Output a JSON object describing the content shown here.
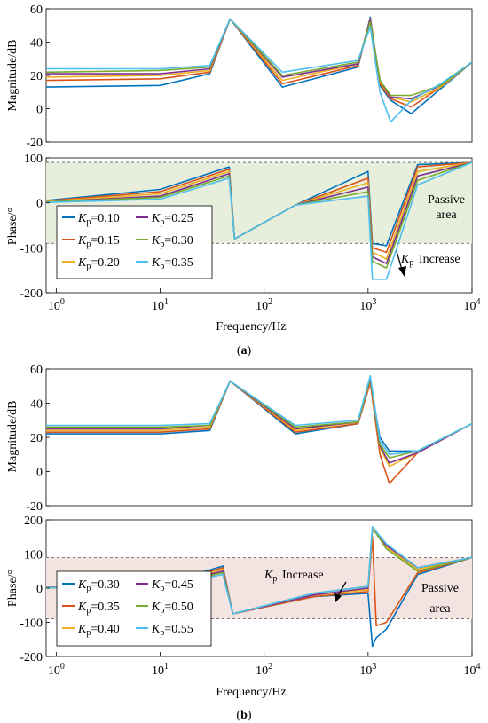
{
  "figure_a": {
    "caption_letter": "a",
    "magnitude": {
      "ylabel": "Magnitude/dB",
      "ylim": [
        -20,
        60
      ],
      "yticks": [
        "-20",
        "0",
        "20",
        "40",
        "60"
      ]
    },
    "phase": {
      "ylabel": "Phase/°",
      "ylim": [
        -200,
        100
      ],
      "yticks": [
        "-200",
        "-100",
        "0",
        "100"
      ],
      "passive_band": [
        -90,
        90
      ],
      "passive_label_1": "Passive",
      "passive_label_2": "area",
      "annotation": "Increase"
    },
    "xlabel": "Frequency/Hz",
    "legend": [
      "=0.10",
      "=0.25",
      "=0.15",
      "=0.30",
      "=0.20",
      "=0.35"
    ]
  },
  "figure_b": {
    "caption_letter": "b",
    "magnitude": {
      "ylabel": "Magnitude/dB",
      "ylim": [
        -20,
        60
      ],
      "yticks": [
        "-20",
        "0",
        "20",
        "40",
        "60"
      ]
    },
    "phase": {
      "ylabel": "Phase/°",
      "ylim": [
        -200,
        200
      ],
      "yticks": [
        "-200",
        "-100",
        "0",
        "100",
        "200"
      ],
      "passive_band": [
        -90,
        90
      ],
      "passive_label_1": "Passive",
      "passive_label_2": "area",
      "annotation": "Increase"
    },
    "xlabel": "Frequency/Hz",
    "legend": [
      "=0.30",
      "=0.45",
      "=0.35",
      "=0.50",
      "=0.40",
      "=0.55"
    ]
  },
  "colors": {
    "series": [
      "#0072BD",
      "#D95319",
      "#EDB120",
      "#7E2F8E",
      "#77AC30",
      "#4DBEEE"
    ],
    "passive_fill_a": "#e7eedc",
    "passive_fill_b": "#f3e4e1"
  },
  "chart_data": [
    {
      "type": "line",
      "panel": "a-magnitude",
      "xscale": "log",
      "xlim": [
        0.8,
        10000
      ],
      "ylim": [
        -20,
        60
      ],
      "x": [
        0.8,
        10,
        30,
        47,
        150,
        800,
        1050,
        1300,
        1650,
        2600,
        5000,
        10000
      ],
      "series": [
        {
          "name": "Kp=0.10",
          "values": [
            13,
            14,
            21,
            54,
            13,
            25,
            55,
            14,
            5,
            -3,
            12,
            28
          ]
        },
        {
          "name": "Kp=0.15",
          "values": [
            17,
            18,
            22,
            54,
            15,
            26,
            54,
            15,
            6,
            1,
            13,
            28
          ]
        },
        {
          "name": "Kp=0.20",
          "values": [
            19,
            20,
            23,
            54,
            17,
            27,
            53,
            16,
            7,
            4,
            13,
            28
          ]
        },
        {
          "name": "Kp=0.25",
          "values": [
            21,
            21,
            24,
            54,
            19,
            27,
            53,
            17,
            7,
            6,
            14,
            28
          ]
        },
        {
          "name": "Kp=0.30",
          "values": [
            22,
            23,
            25,
            54,
            20,
            28,
            52,
            17,
            8,
            8,
            14,
            28
          ]
        },
        {
          "name": "Kp=0.35",
          "values": [
            24,
            24,
            26,
            54,
            22,
            29,
            49,
            10,
            -8,
            5,
            15,
            28
          ]
        }
      ]
    },
    {
      "type": "line",
      "panel": "a-phase",
      "xscale": "log",
      "xlim": [
        0.8,
        10000
      ],
      "ylim": [
        -200,
        100
      ],
      "x": [
        0.8,
        10,
        46,
        52,
        200,
        1000,
        1100,
        1500,
        3000,
        10000
      ],
      "series": [
        {
          "name": "Kp=0.10",
          "values": [
            5,
            30,
            80,
            -80,
            -5,
            70,
            -90,
            -95,
            85,
            90
          ]
        },
        {
          "name": "Kp=0.15",
          "values": [
            4,
            25,
            75,
            -80,
            -5,
            55,
            -100,
            -110,
            80,
            90
          ]
        },
        {
          "name": "Kp=0.20",
          "values": [
            3,
            20,
            70,
            -80,
            -5,
            45,
            -110,
            -125,
            70,
            90
          ]
        },
        {
          "name": "Kp=0.25",
          "values": [
            2,
            15,
            65,
            -80,
            -5,
            35,
            -120,
            -135,
            60,
            90
          ]
        },
        {
          "name": "Kp=0.30",
          "values": [
            2,
            12,
            60,
            -80,
            -5,
            25,
            -130,
            -145,
            50,
            90
          ]
        },
        {
          "name": "Kp=0.35",
          "values": [
            1,
            8,
            55,
            -80,
            -5,
            15,
            -170,
            -170,
            40,
            90
          ]
        }
      ]
    },
    {
      "type": "line",
      "panel": "b-magnitude",
      "xscale": "log",
      "xlim": [
        0.8,
        10000
      ],
      "ylim": [
        -20,
        60
      ],
      "x": [
        0.8,
        10,
        30,
        47,
        200,
        800,
        1050,
        1300,
        1600,
        3000,
        10000
      ],
      "series": [
        {
          "name": "Kp=0.30",
          "values": [
            22,
            22,
            24,
            53,
            22,
            28,
            52,
            20,
            12,
            12,
            28
          ]
        },
        {
          "name": "Kp=0.35",
          "values": [
            23,
            23,
            25,
            53,
            23,
            28,
            52,
            10,
            -7,
            11,
            28
          ]
        },
        {
          "name": "Kp=0.40",
          "values": [
            24,
            24,
            26,
            53,
            24,
            29,
            53,
            14,
            3,
            11,
            28
          ]
        },
        {
          "name": "Kp=0.45",
          "values": [
            25,
            25,
            27,
            53,
            25,
            29,
            54,
            15,
            5,
            11,
            28
          ]
        },
        {
          "name": "Kp=0.50",
          "values": [
            26,
            26,
            27,
            53,
            26,
            29,
            55,
            16,
            8,
            12,
            28
          ]
        },
        {
          "name": "Kp=0.55",
          "values": [
            27,
            27,
            28,
            53,
            27,
            30,
            56,
            18,
            10,
            12,
            28
          ]
        }
      ]
    },
    {
      "type": "line",
      "panel": "b-phase",
      "xscale": "log",
      "xlim": [
        0.8,
        10000
      ],
      "ylim": [
        -200,
        200
      ],
      "x": [
        0.8,
        10,
        40,
        50,
        300,
        1000,
        1100,
        1200,
        1500,
        3000,
        10000
      ],
      "series": [
        {
          "name": "Kp=0.30",
          "values": [
            2,
            10,
            65,
            -75,
            -25,
            -15,
            -170,
            -145,
            -120,
            40,
            90
          ]
        },
        {
          "name": "Kp=0.35",
          "values": [
            2,
            8,
            60,
            -75,
            -25,
            -10,
            150,
            -110,
            -100,
            45,
            90
          ]
        },
        {
          "name": "Kp=0.40",
          "values": [
            1,
            6,
            55,
            -75,
            -20,
            -5,
            170,
            160,
            120,
            55,
            90
          ]
        },
        {
          "name": "Kp=0.45",
          "values": [
            1,
            5,
            50,
            -75,
            -20,
            0,
            175,
            165,
            125,
            60,
            90
          ]
        },
        {
          "name": "Kp=0.50",
          "values": [
            1,
            4,
            45,
            -75,
            -15,
            5,
            175,
            160,
            115,
            50,
            90
          ]
        },
        {
          "name": "Kp=0.55",
          "values": [
            1,
            3,
            40,
            -75,
            -15,
            5,
            180,
            165,
            130,
            60,
            90
          ]
        }
      ]
    }
  ]
}
